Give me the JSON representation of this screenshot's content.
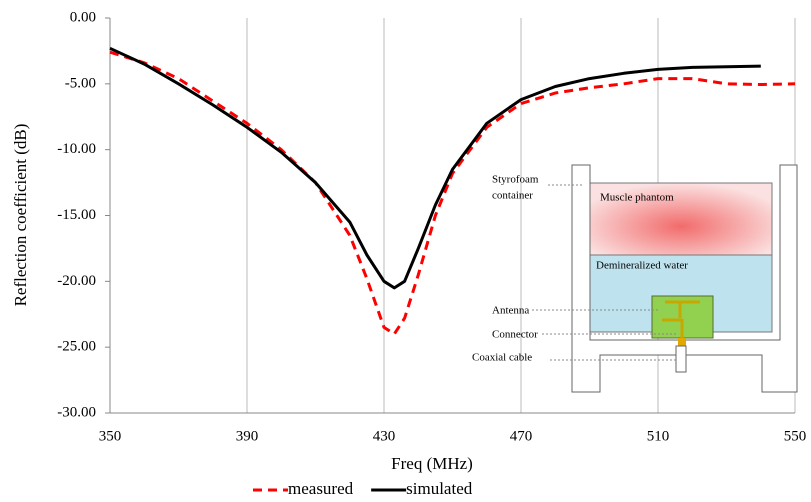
{
  "chart_data": {
    "type": "line",
    "x_label": "Freq (MHz)",
    "y_label": "Reflection coefficient (dB)",
    "x": [
      350,
      360,
      370,
      380,
      390,
      400,
      410,
      420,
      425,
      430,
      433,
      436,
      440,
      445,
      450,
      460,
      470,
      480,
      490,
      500,
      510,
      520,
      530,
      540,
      550
    ],
    "series": [
      {
        "name": "measured",
        "color": "#ff0000",
        "dash": true,
        "values": [
          -2.6,
          -3.4,
          -4.6,
          -6.3,
          -8.0,
          -10.0,
          -12.5,
          -16.5,
          -19.8,
          -23.5,
          -24.0,
          -22.8,
          -19.5,
          -15.0,
          -11.8,
          -8.3,
          -6.5,
          -5.7,
          -5.3,
          -5.0,
          -4.6,
          -4.6,
          -5.0,
          -5.05,
          -5.0
        ]
      },
      {
        "name": "simulated",
        "color": "#000000",
        "dash": false,
        "values": [
          -2.3,
          -3.5,
          -5.0,
          -6.6,
          -8.3,
          -10.2,
          -12.5,
          -15.5,
          -18.0,
          -20.0,
          -20.5,
          -20.0,
          -17.5,
          -14.2,
          -11.5,
          -8.0,
          -6.2,
          -5.2,
          -4.6,
          -4.2,
          -3.9,
          -3.75,
          -3.7,
          -3.65,
          null
        ]
      }
    ],
    "xlim": [
      350,
      550
    ],
    "xticks": [
      350,
      390,
      430,
      470,
      510,
      550
    ],
    "ylim": [
      -30,
      0
    ],
    "yticks": [
      {
        "value": -30,
        "label": "-30.00"
      },
      {
        "value": -25,
        "label": "-25.00"
      },
      {
        "value": -20,
        "label": "-20.00"
      },
      {
        "value": -15,
        "label": "-15.00"
      },
      {
        "value": -10,
        "label": "-10.00"
      },
      {
        "value": -5,
        "label": "-5.00"
      },
      {
        "value": 0,
        "label": "0.00"
      }
    ],
    "grid": true,
    "legend": "bottom"
  },
  "inset": {
    "styrofoam": [
      "Styrofoam",
      "container"
    ],
    "muscle": "Muscle phantom",
    "water": "Demineralized water",
    "antenna": "Antenna",
    "connector": "Connector",
    "cable": "Coaxial cable"
  }
}
